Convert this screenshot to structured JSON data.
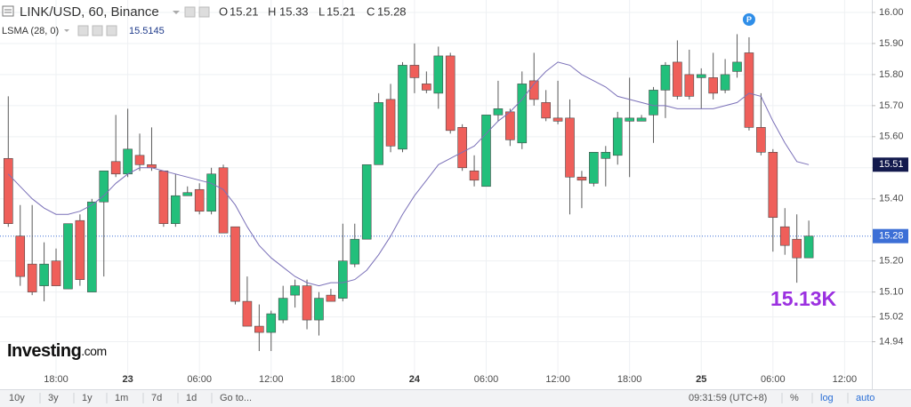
{
  "chart_data": {
    "type": "candlestick",
    "title": "LINK/USD, 60, Binance",
    "ohlc_legend": [
      {
        "label": "O",
        "value": 15.21
      },
      {
        "label": "H",
        "value": 15.33
      },
      {
        "label": "L",
        "value": 15.21
      },
      {
        "label": "C",
        "value": 15.28
      }
    ],
    "indicator": {
      "name": "LSMA (28, 0)",
      "value": 15.5145,
      "color": "#7a70b8",
      "values": [
        15.48,
        15.44,
        15.4,
        15.37,
        15.35,
        15.35,
        15.36,
        15.38,
        15.41,
        15.45,
        15.48,
        15.5,
        15.5,
        15.49,
        15.48,
        15.47,
        15.46,
        15.45,
        15.43,
        15.38,
        15.31,
        15.25,
        15.21,
        15.18,
        15.15,
        15.13,
        15.12,
        15.13,
        15.13,
        15.14,
        15.17,
        15.22,
        15.28,
        15.35,
        15.41,
        15.46,
        15.51,
        15.53,
        15.55,
        15.57,
        15.61,
        15.65,
        15.68,
        15.72,
        15.77,
        15.81,
        15.84,
        15.83,
        15.8,
        15.78,
        15.76,
        15.73,
        15.72,
        15.71,
        15.7,
        15.7,
        15.69,
        15.69,
        15.69,
        15.69,
        15.7,
        15.71,
        15.74,
        15.73,
        15.65,
        15.58,
        15.52,
        15.51,
        null,
        null,
        null,
        null,
        null
      ]
    },
    "categories": [
      null,
      null,
      null,
      null,
      "18:00",
      null,
      null,
      null,
      null,
      null,
      "23",
      null,
      null,
      null,
      null,
      null,
      "06:00",
      null,
      null,
      null,
      null,
      null,
      "12:00",
      null,
      null,
      null,
      null,
      null,
      "18:00",
      null,
      null,
      null,
      null,
      null,
      "24",
      null,
      null,
      null,
      null,
      null,
      "06:00",
      null,
      null,
      null,
      null,
      null,
      "12:00",
      null,
      null,
      null,
      null,
      null,
      "18:00",
      null,
      null,
      null,
      null,
      null,
      "25",
      null,
      null,
      null,
      null,
      null,
      "06:00",
      null,
      null,
      null,
      null,
      null,
      "12:00",
      null,
      null
    ],
    "open": [
      15.53,
      15.28,
      15.19,
      15.12,
      15.2,
      15.11,
      15.33,
      15.1,
      15.39,
      15.52,
      15.48,
      15.54,
      15.51,
      15.49,
      15.32,
      15.41,
      15.43,
      15.36,
      15.5,
      15.31,
      15.07,
      14.99,
      14.97,
      15.01,
      15.09,
      15.12,
      15.01,
      15.09,
      15.08,
      15.19,
      15.27,
      15.51,
      15.72,
      15.56,
      15.83,
      15.77,
      15.74,
      15.86,
      15.63,
      15.49,
      15.44,
      15.67,
      15.68,
      15.58,
      15.78,
      15.71,
      15.66,
      15.66,
      15.47,
      15.45,
      15.53,
      15.54,
      15.65,
      15.65,
      15.67,
      15.75,
      15.84,
      15.8,
      15.79,
      15.79,
      15.75,
      15.81,
      15.87,
      15.63,
      15.55,
      15.31,
      15.27,
      15.21,
      null,
      null,
      null,
      null,
      null
    ],
    "high": [
      15.73,
      15.38,
      15.38,
      15.26,
      15.24,
      15.32,
      15.35,
      15.4,
      15.49,
      15.67,
      15.69,
      15.61,
      15.63,
      15.49,
      15.48,
      15.44,
      15.45,
      15.5,
      15.51,
      15.31,
      15.15,
      15.06,
      15.04,
      15.12,
      15.14,
      15.14,
      15.1,
      15.11,
      15.32,
      15.32,
      15.51,
      15.74,
      15.77,
      15.84,
      15.9,
      15.81,
      15.89,
      15.87,
      15.64,
      15.54,
      15.67,
      15.78,
      15.69,
      15.81,
      15.87,
      15.75,
      15.78,
      15.72,
      15.49,
      15.55,
      15.57,
      15.68,
      15.79,
      15.67,
      15.76,
      15.84,
      15.91,
      15.88,
      15.82,
      15.87,
      15.85,
      15.93,
      15.92,
      15.74,
      15.56,
      15.37,
      15.35,
      15.33,
      null,
      null,
      null,
      null,
      null
    ],
    "low": [
      15.31,
      15.12,
      15.09,
      15.07,
      15.12,
      15.11,
      15.12,
      15.1,
      15.15,
      15.47,
      15.47,
      15.49,
      15.49,
      15.31,
      15.31,
      15.41,
      15.35,
      15.35,
      15.29,
      15.06,
      14.99,
      14.91,
      14.91,
      15.0,
      15.05,
      14.98,
      14.96,
      15.07,
      15.07,
      15.18,
      15.27,
      15.51,
      15.55,
      15.55,
      15.74,
      15.74,
      15.69,
      15.61,
      15.49,
      15.44,
      15.44,
      15.65,
      15.57,
      15.56,
      15.7,
      15.65,
      15.64,
      15.35,
      15.37,
      15.44,
      15.44,
      15.51,
      15.47,
      15.65,
      15.58,
      15.66,
      15.72,
      15.72,
      15.69,
      15.72,
      15.74,
      15.79,
      15.62,
      15.54,
      15.23,
      15.22,
      15.13,
      15.21,
      null,
      null,
      null,
      null,
      null
    ],
    "close": [
      15.32,
      15.15,
      15.1,
      15.19,
      15.12,
      15.32,
      15.14,
      15.39,
      15.49,
      15.48,
      15.56,
      15.51,
      15.5,
      15.32,
      15.41,
      15.42,
      15.36,
      15.48,
      15.29,
      15.07,
      14.99,
      14.97,
      15.03,
      15.08,
      15.12,
      15.01,
      15.08,
      15.07,
      15.2,
      15.27,
      15.51,
      15.71,
      15.57,
      15.83,
      15.79,
      15.75,
      15.86,
      15.62,
      15.5,
      15.46,
      15.67,
      15.69,
      15.59,
      15.77,
      15.72,
      15.66,
      15.65,
      15.47,
      15.46,
      15.55,
      15.55,
      15.66,
      15.66,
      15.66,
      15.75,
      15.83,
      15.73,
      15.73,
      15.8,
      15.74,
      15.8,
      15.84,
      15.63,
      15.55,
      15.34,
      15.25,
      15.21,
      15.28,
      null,
      null,
      null,
      null,
      null
    ],
    "up_color": "#22bf7b",
    "down_color": "#ef5f5a",
    "ylim": [
      14.81,
      16.04
    ],
    "yticks": [
      {
        "value": 16,
        "label": "16.00"
      },
      {
        "value": 15.9,
        "label": "15.90"
      },
      {
        "value": 15.8,
        "label": "15.80"
      },
      {
        "value": 15.7,
        "label": "15.70"
      },
      {
        "value": 15.6,
        "label": "15.60"
      },
      {
        "value": 15.5,
        "label": "15.50"
      },
      {
        "value": 15.4,
        "label": "15.40"
      },
      {
        "value": 15.2,
        "label": "15.20"
      },
      {
        "value": 15.1,
        "label": "15.10"
      },
      15.02,
      14.94
    ],
    "grid": true,
    "price_labels": [
      {
        "value": 15.51,
        "color": "#131a4d"
      },
      {
        "value": 15.28,
        "color": "#3c6fd6"
      }
    ],
    "marker": "P",
    "annotation": "15.13K"
  },
  "logo": {
    "name": "Investing",
    "suffix": ".com"
  },
  "toolbar": {
    "ranges": [
      "10y",
      "3y",
      "1y",
      "1m",
      "7d",
      "1d",
      "Go to..."
    ],
    "time": "09:31:59 (UTC+8)",
    "options": [
      "%",
      "log",
      "auto"
    ]
  }
}
